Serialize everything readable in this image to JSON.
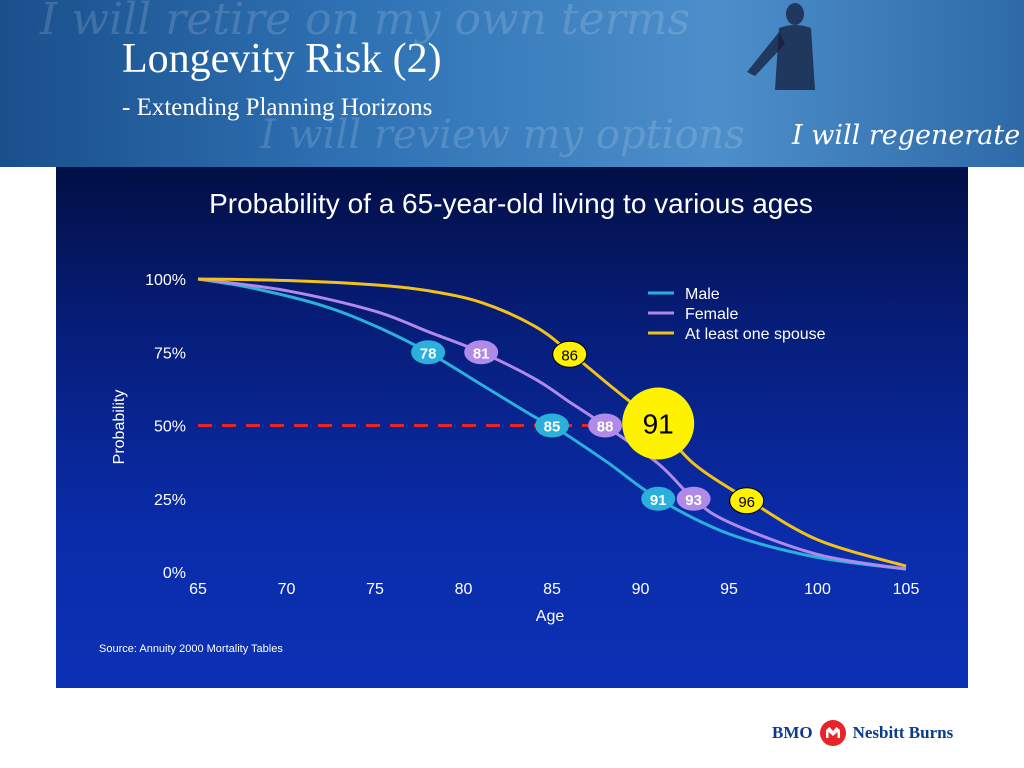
{
  "slide": {
    "title": "Longevity Risk (2)",
    "subtitle": "- Extending Planning Horizons",
    "tagline": "I will regenerate",
    "background_script": [
      "I will retire on my own terms",
      "I will review my options"
    ]
  },
  "branding": {
    "bmo": "BMO",
    "nesbitt": "Nesbitt Burns",
    "brand_color": "#0a3a8c",
    "roundel_color": "#e8232a"
  },
  "chart_data": {
    "type": "line",
    "title": "Probability of a 65-year-old living to various ages",
    "xlabel": "Age",
    "ylabel": "Probability",
    "source": "Source: Annuity 2000 Mortality Tables",
    "x_ticks": [
      65,
      70,
      75,
      80,
      85,
      90,
      95,
      100,
      105
    ],
    "y_ticks": [
      {
        "value": 0,
        "label": "0%"
      },
      {
        "value": 25,
        "label": "25%"
      },
      {
        "value": 50,
        "label": "50%"
      },
      {
        "value": 75,
        "label": "75%"
      },
      {
        "value": 100,
        "label": "100%"
      }
    ],
    "xlim": [
      65,
      105
    ],
    "ylim": [
      0,
      100
    ],
    "legend_position": "top-right",
    "series": [
      {
        "name": "Male",
        "color": "#2bb0dc",
        "x": [
          65,
          68,
          72,
          75,
          78,
          81,
          84,
          85,
          88,
          91,
          95,
          100,
          105
        ],
        "y": [
          100,
          97,
          91,
          84,
          75,
          64,
          53,
          50,
          38,
          25,
          13,
          5,
          1
        ]
      },
      {
        "name": "Female",
        "color": "#b08ae8",
        "x": [
          65,
          70,
          75,
          78,
          81,
          84,
          86,
          88,
          91,
          93,
          95,
          100,
          105
        ],
        "y": [
          100,
          96,
          89,
          82,
          75,
          66,
          58,
          50,
          37,
          25,
          17,
          6,
          1
        ]
      },
      {
        "name": "At least one spouse",
        "color": "#f2c21b",
        "x": [
          65,
          70,
          75,
          78,
          81,
          84,
          86,
          88,
          91,
          93,
          96,
          100,
          105
        ],
        "y": [
          100,
          99.5,
          98,
          96,
          92,
          84,
          75,
          65,
          50,
          37,
          25,
          11,
          2
        ]
      }
    ],
    "reference_line": {
      "y": 50,
      "x_end": 91,
      "color": "#e8232a"
    },
    "markers": [
      {
        "series": "Male",
        "x": 78,
        "y": 75,
        "label": "78"
      },
      {
        "series": "Female",
        "x": 81,
        "y": 75,
        "label": "81"
      },
      {
        "series": "At least one spouse",
        "x": 86,
        "y": 75,
        "label": "86"
      },
      {
        "series": "Male",
        "x": 85,
        "y": 50,
        "label": "85"
      },
      {
        "series": "Female",
        "x": 88,
        "y": 50,
        "label": "88"
      },
      {
        "series": "At least one spouse",
        "x": 91,
        "y": 50,
        "label": "91"
      },
      {
        "series": "Male",
        "x": 91,
        "y": 25,
        "label": "91"
      },
      {
        "series": "Female",
        "x": 93,
        "y": 25,
        "label": "93"
      },
      {
        "series": "At least one spouse",
        "x": 96,
        "y": 25,
        "label": "96"
      }
    ]
  }
}
